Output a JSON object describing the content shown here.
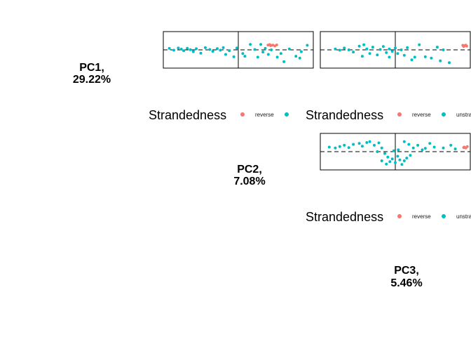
{
  "colors": {
    "reverse": "#F8766D",
    "unstranded": "#00BFC4"
  },
  "diagonal_labels": [
    {
      "line1": "PC1,",
      "line2": "29.22%"
    },
    {
      "line1": "PC2,",
      "line2": "7.08%"
    },
    {
      "line1": "PC3,",
      "line2": "5.46%"
    }
  ],
  "legend": {
    "title": "Strandedness",
    "entries": [
      {
        "label": "reverse",
        "color": "#F8766D"
      },
      {
        "label": "unstranded",
        "color": "#00BFC4"
      }
    ]
  },
  "chart_data": [
    {
      "type": "scatter",
      "panel": "PC1 vs PC2",
      "xlim": [
        -2.5,
        2.5
      ],
      "ylim": [
        -1,
        1
      ],
      "ref_lines": {
        "x": 0,
        "y": 0
      },
      "series": [
        {
          "name": "reverse",
          "color": "#F8766D",
          "points": [
            [
              0.99,
              0.26
            ],
            [
              1.08,
              0.23
            ],
            [
              1.15,
              0.26
            ],
            [
              1.22,
              0.21
            ],
            [
              1.28,
              0.27
            ],
            [
              1.05,
              0.29
            ]
          ]
        },
        {
          "name": "unstranded",
          "color": "#00BFC4",
          "points": [
            [
              -2.3,
              0.08
            ],
            [
              -2.15,
              -0.02
            ],
            [
              -2.0,
              0.1
            ],
            [
              -1.9,
              0.04
            ],
            [
              -1.82,
              -0.05
            ],
            [
              -1.7,
              0.09
            ],
            [
              -1.6,
              0.01
            ],
            [
              -1.5,
              -0.1
            ],
            [
              -1.4,
              0.06
            ],
            [
              -1.25,
              -0.18
            ],
            [
              -1.1,
              0.12
            ],
            [
              -0.95,
              0.02
            ],
            [
              -0.85,
              -0.08
            ],
            [
              -0.7,
              0.07
            ],
            [
              -0.6,
              -0.02
            ],
            [
              -0.5,
              0.12
            ],
            [
              -0.42,
              -0.25
            ],
            [
              -0.3,
              -0.05
            ],
            [
              -0.15,
              -0.38
            ],
            [
              -0.05,
              0.1
            ],
            [
              0.15,
              -0.2
            ],
            [
              0.22,
              -0.35
            ],
            [
              0.4,
              0.3
            ],
            [
              0.55,
              0.02
            ],
            [
              0.65,
              -0.4
            ],
            [
              0.75,
              0.3
            ],
            [
              0.82,
              -0.12
            ],
            [
              0.9,
              0.08
            ],
            [
              1.0,
              -0.25
            ],
            [
              1.1,
              0.0
            ],
            [
              1.3,
              -0.4
            ],
            [
              1.42,
              -0.2
            ],
            [
              1.52,
              -0.65
            ],
            [
              1.7,
              0.05
            ],
            [
              1.92,
              -0.35
            ],
            [
              2.05,
              -0.45
            ],
            [
              2.3,
              0.25
            ],
            [
              2.1,
              -0.1
            ]
          ]
        }
      ]
    },
    {
      "type": "scatter",
      "panel": "PC1 vs PC3",
      "xlim": [
        -2.5,
        2.5
      ],
      "ylim": [
        -1,
        1
      ],
      "ref_lines": {
        "x": 0,
        "y": 0
      },
      "series": [
        {
          "name": "reverse",
          "color": "#F8766D",
          "points": [
            [
              2.25,
              0.25
            ],
            [
              2.3,
              0.22
            ],
            [
              2.35,
              0.26
            ],
            [
              2.28,
              0.18
            ],
            [
              2.38,
              0.2
            ]
          ]
        },
        {
          "name": "unstranded",
          "color": "#00BFC4",
          "points": [
            [
              -2.0,
              0.05
            ],
            [
              -1.85,
              -0.02
            ],
            [
              -1.7,
              0.1
            ],
            [
              -1.55,
              0.0
            ],
            [
              -1.4,
              -0.12
            ],
            [
              -1.2,
              0.2
            ],
            [
              -1.05,
              0.28
            ],
            [
              -0.95,
              0.05
            ],
            [
              -0.85,
              -0.2
            ],
            [
              -0.75,
              0.15
            ],
            [
              -0.6,
              -0.28
            ],
            [
              -0.5,
              0.02
            ],
            [
              -0.4,
              0.18
            ],
            [
              -0.3,
              -0.15
            ],
            [
              -0.2,
              0.05
            ],
            [
              -0.1,
              -0.08
            ],
            [
              0.0,
              0.1
            ],
            [
              0.08,
              -0.2
            ],
            [
              0.2,
              0.0
            ],
            [
              0.3,
              -0.3
            ],
            [
              0.4,
              0.12
            ],
            [
              0.55,
              -0.55
            ],
            [
              0.65,
              -0.4
            ],
            [
              0.8,
              0.28
            ],
            [
              1.0,
              -0.38
            ],
            [
              1.2,
              -0.45
            ],
            [
              1.5,
              -0.6
            ],
            [
              1.8,
              -0.7
            ],
            [
              1.4,
              0.15
            ],
            [
              1.6,
              0.0
            ],
            [
              -1.1,
              -0.35
            ],
            [
              -0.2,
              -0.4
            ]
          ]
        }
      ]
    },
    {
      "type": "scatter",
      "panel": "PC2 vs PC3",
      "xlim": [
        -2.5,
        2.5
      ],
      "ylim": [
        -1,
        1
      ],
      "ref_lines": {
        "x": 0,
        "y": 0
      },
      "series": [
        {
          "name": "reverse",
          "color": "#F8766D",
          "points": [
            [
              2.3,
              0.25
            ],
            [
              2.35,
              0.2
            ],
            [
              2.4,
              0.28
            ],
            [
              2.28,
              0.22
            ]
          ]
        },
        {
          "name": "unstranded",
          "color": "#00BFC4",
          "points": [
            [
              -2.2,
              0.25
            ],
            [
              -2.0,
              0.2
            ],
            [
              -1.85,
              0.28
            ],
            [
              -1.7,
              0.35
            ],
            [
              -1.55,
              0.22
            ],
            [
              -1.4,
              0.4
            ],
            [
              -1.2,
              0.45
            ],
            [
              -1.1,
              0.3
            ],
            [
              -0.95,
              0.5
            ],
            [
              -0.85,
              0.55
            ],
            [
              -0.7,
              0.35
            ],
            [
              -0.55,
              0.48
            ],
            [
              -0.45,
              0.2
            ],
            [
              -0.35,
              -0.1
            ],
            [
              -0.25,
              -0.3
            ],
            [
              -0.18,
              -0.55
            ],
            [
              -0.1,
              -0.4
            ],
            [
              0.0,
              -0.6
            ],
            [
              0.08,
              -0.25
            ],
            [
              0.15,
              -0.45
            ],
            [
              0.22,
              -0.7
            ],
            [
              0.3,
              -0.5
            ],
            [
              0.38,
              -0.35
            ],
            [
              -0.3,
              -0.68
            ],
            [
              -0.45,
              -0.5
            ],
            [
              0.1,
              0.1
            ],
            [
              0.45,
              0.4
            ],
            [
              0.6,
              0.2
            ],
            [
              0.75,
              0.35
            ],
            [
              0.9,
              0.1
            ],
            [
              1.0,
              0.18
            ],
            [
              1.15,
              0.45
            ],
            [
              1.3,
              0.25
            ],
            [
              1.6,
              0.2
            ],
            [
              1.85,
              0.35
            ],
            [
              2.0,
              0.15
            ],
            [
              0.3,
              0.55
            ],
            [
              -0.6,
              0.0
            ],
            [
              0.5,
              -0.2
            ],
            [
              -0.05,
              0.05
            ]
          ]
        }
      ]
    }
  ]
}
